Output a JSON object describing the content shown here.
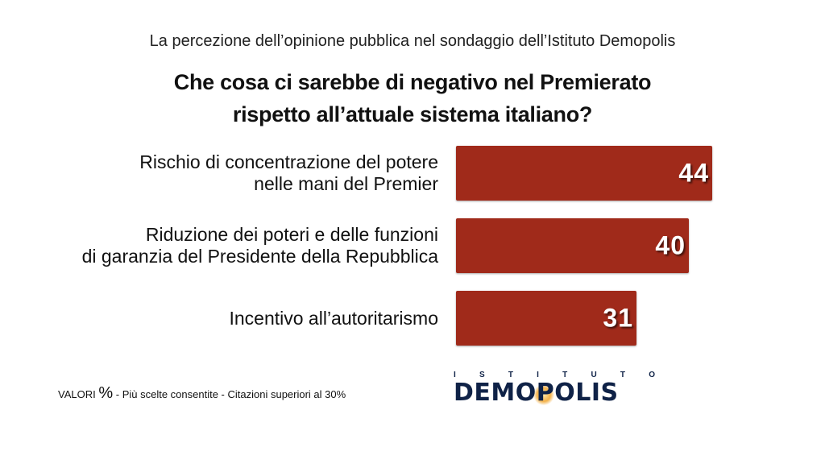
{
  "header": {
    "subtitle": "La percezione dell’opinione pubblica nel sondaggio dell’Istituto Demopolis",
    "title_line1": "Che cosa ci sarebbe di negativo nel Premierato",
    "title_line2": "rispetto all’attuale sistema italiano?"
  },
  "chart_data": {
    "type": "bar",
    "orientation": "horizontal",
    "title": "Che cosa ci sarebbe di negativo nel Premierato rispetto all’attuale sistema italiano?",
    "categories": [
      "Rischio di concentrazione del potere nelle mani del Premier",
      "Riduzione dei poteri e delle funzioni di garanzia del Presidente della Repubblica",
      "Incentivo all’autoritarismo"
    ],
    "category_lines": [
      [
        "Rischio di concentrazione del potere",
        "nelle mani del Premier"
      ],
      [
        "Riduzione dei poteri e delle funzioni",
        "di garanzia del Presidente della Repubblica"
      ],
      [
        "Incentivo all’autoritarismo"
      ]
    ],
    "values": [
      44,
      40,
      31
    ],
    "value_labels": [
      "44",
      "40",
      "31"
    ],
    "unit": "%",
    "bar_color": "#a02a1a",
    "grid": false,
    "xlim": [
      0,
      100
    ]
  },
  "footer": {
    "note_prefix": "VALORI",
    "note_pct": "%",
    "note_text": " - Più scelte consentite - Citazioni superiori al 30%"
  },
  "logo": {
    "top_letters": [
      "I",
      "S",
      "T",
      "I",
      "T",
      "U",
      "T",
      "O"
    ],
    "name": "DEMOPOLIS",
    "navy": "#0f2247",
    "accent": "#f3b24a"
  }
}
